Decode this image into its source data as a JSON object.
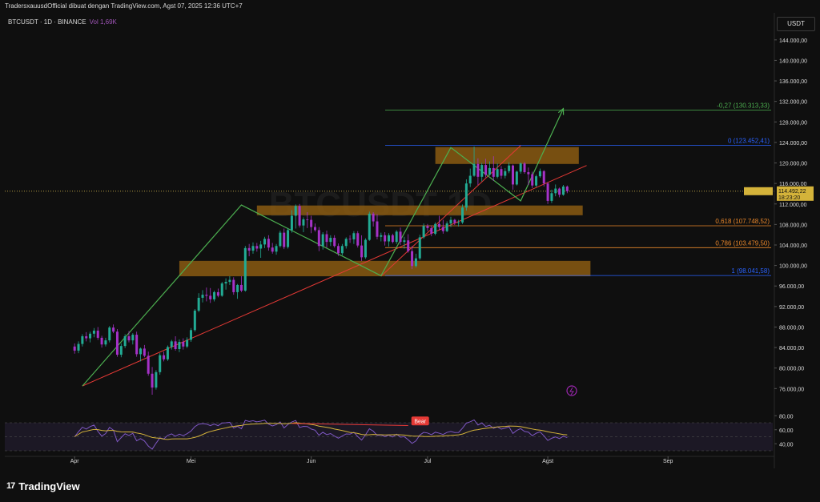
{
  "header": {
    "attribution": "TradersxauusdOfficial dibuat dengan TradingView.com, Agst 07, 2025 12:36 UTC+7",
    "symbol_line": "BTCUSDT · 1D · BINANCE",
    "volume_label": "Vol 1,69K",
    "currency_button": "USDT",
    "watermark": "BTCUSDT 1D"
  },
  "footer": {
    "brand": "TradingView",
    "logo_glyph": "17"
  },
  "chart_data": {
    "type": "candlestick",
    "price_axis_labels": [
      "144.000,00",
      "140.000,00",
      "136.000,00",
      "132.000,00",
      "128.000,00",
      "124.000,00",
      "120.000,00",
      "116.000,00",
      "112.000,00",
      "108.000,00",
      "104.000,00",
      "100.000,00",
      "96.000,00",
      "92.000,00",
      "88.000,00",
      "84.000,00",
      "80.000,00",
      "76.000,00"
    ],
    "price_axis_values": [
      144000,
      140000,
      136000,
      132000,
      128000,
      124000,
      120000,
      116000,
      112000,
      108000,
      104000,
      100000,
      96000,
      92000,
      88000,
      84000,
      80000,
      76000
    ],
    "ylim": [
      74800,
      146000
    ],
    "x_axis_labels": [
      "Apr",
      "Mei",
      "Jun",
      "Jul",
      "Agst",
      "Sep"
    ],
    "x_axis_day_index": [
      0,
      30,
      61,
      91,
      122,
      153
    ],
    "xlim_days": [
      -18,
      180
    ],
    "last_price": {
      "symbol": "BTCUSDT",
      "value": "114.492,22",
      "countdown": "18:23:20",
      "price": 114492
    },
    "candles": [
      [
        84200,
        84800,
        82800,
        83400
      ],
      [
        83400,
        85200,
        82900,
        84700
      ],
      [
        84700,
        86600,
        84200,
        86200
      ],
      [
        86200,
        87000,
        85200,
        85800
      ],
      [
        85800,
        87100,
        85000,
        86700
      ],
      [
        86700,
        87800,
        86000,
        87300
      ],
      [
        87300,
        88000,
        85500,
        85900
      ],
      [
        85900,
        86300,
        84000,
        84600
      ],
      [
        84600,
        85900,
        84200,
        85400
      ],
      [
        85400,
        88200,
        85000,
        87900
      ],
      [
        87900,
        88500,
        86800,
        87100
      ],
      [
        87100,
        87600,
        82200,
        82600
      ],
      [
        82600,
        84800,
        82100,
        84300
      ],
      [
        84300,
        86600,
        83900,
        86200
      ],
      [
        86200,
        87200,
        85000,
        85400
      ],
      [
        85400,
        86800,
        84600,
        86500
      ],
      [
        86500,
        87100,
        82200,
        82700
      ],
      [
        82700,
        84000,
        81300,
        83800
      ],
      [
        83800,
        84500,
        82100,
        82400
      ],
      [
        82400,
        83200,
        78500,
        78900
      ],
      [
        78900,
        80200,
        74800,
        76200
      ],
      [
        76200,
        79600,
        75800,
        79200
      ],
      [
        79200,
        82900,
        78700,
        82500
      ],
      [
        82500,
        83200,
        81300,
        81700
      ],
      [
        81700,
        84400,
        81400,
        84100
      ],
      [
        84100,
        85500,
        83600,
        85200
      ],
      [
        85200,
        86200,
        83400,
        83700
      ],
      [
        83700,
        85600,
        83100,
        85100
      ],
      [
        85100,
        85800,
        83600,
        84200
      ],
      [
        84200,
        86000,
        83900,
        85500
      ],
      [
        85500,
        87800,
        85100,
        87400
      ],
      [
        87400,
        91500,
        87100,
        91200
      ],
      [
        91200,
        94600,
        90900,
        93700
      ],
      [
        93700,
        95200,
        92800,
        94300
      ],
      [
        94300,
        95700,
        93000,
        94100
      ],
      [
        94100,
        95600,
        92700,
        93400
      ],
      [
        93400,
        95100,
        93000,
        94800
      ],
      [
        94800,
        95500,
        93800,
        94100
      ],
      [
        94100,
        96800,
        93900,
        96500
      ],
      [
        96500,
        97500,
        95300,
        96800
      ],
      [
        96800,
        97900,
        96200,
        97200
      ],
      [
        97200,
        97700,
        94300,
        94800
      ],
      [
        94800,
        96400,
        93500,
        96200
      ],
      [
        96200,
        97900,
        94800,
        95100
      ],
      [
        95100,
        103800,
        94900,
        103400
      ],
      [
        103400,
        104200,
        101800,
        102900
      ],
      [
        102900,
        104500,
        102300,
        103800
      ],
      [
        103800,
        104400,
        102700,
        103300
      ],
      [
        103300,
        104800,
        101500,
        104100
      ],
      [
        104100,
        105600,
        103400,
        105200
      ],
      [
        105200,
        105900,
        102900,
        103500
      ],
      [
        103500,
        104400,
        102300,
        102700
      ],
      [
        102700,
        104200,
        102100,
        103800
      ],
      [
        103800,
        106800,
        103500,
        106400
      ],
      [
        106400,
        107200,
        103200,
        103600
      ],
      [
        103600,
        107300,
        103300,
        106900
      ],
      [
        106900,
        110800,
        106400,
        109700
      ],
      [
        109700,
        111900,
        107200,
        111600
      ],
      [
        111600,
        112000,
        107400,
        107800
      ],
      [
        107800,
        109400,
        106500,
        109000
      ],
      [
        109000,
        110400,
        107300,
        108900
      ],
      [
        108900,
        109700,
        106300,
        107500
      ],
      [
        107500,
        108200,
        106600,
        106900
      ],
      [
        106900,
        107500,
        102800,
        103800
      ],
      [
        103800,
        106500,
        103100,
        106100
      ],
      [
        106100,
        106800,
        103500,
        104600
      ],
      [
        104600,
        105900,
        103800,
        105400
      ],
      [
        105400,
        105900,
        103500,
        103800
      ],
      [
        103800,
        104300,
        101900,
        102400
      ],
      [
        102400,
        104200,
        102000,
        103800
      ],
      [
        103800,
        105500,
        103300,
        105200
      ],
      [
        105200,
        105900,
        104400,
        105100
      ],
      [
        105100,
        106700,
        104200,
        106300
      ],
      [
        106300,
        106700,
        103500,
        103900
      ],
      [
        103900,
        105900,
        100900,
        101600
      ],
      [
        101600,
        105300,
        101300,
        105000
      ],
      [
        105000,
        110500,
        104800,
        110100
      ],
      [
        110100,
        110400,
        107600,
        108600
      ],
      [
        108600,
        110000,
        105100,
        105600
      ],
      [
        105600,
        106400,
        104700,
        105900
      ],
      [
        105900,
        106500,
        103900,
        104700
      ],
      [
        104700,
        106300,
        103700,
        105900
      ],
      [
        105900,
        106200,
        104300,
        104600
      ],
      [
        104600,
        106900,
        104200,
        106600
      ],
      [
        106600,
        107400,
        104000,
        104600
      ],
      [
        104600,
        105600,
        103300,
        104900
      ],
      [
        104900,
        106100,
        102500,
        102800
      ],
      [
        102800,
        103800,
        99300,
        99900
      ],
      [
        99900,
        102300,
        99600,
        101400
      ],
      [
        101400,
        106000,
        101100,
        105500
      ],
      [
        105500,
        108200,
        105200,
        107700
      ],
      [
        107700,
        108100,
        106700,
        107300
      ],
      [
        107300,
        107800,
        105700,
        106200
      ],
      [
        106200,
        108400,
        105900,
        108100
      ],
      [
        108100,
        109700,
        106800,
        107500
      ],
      [
        107500,
        108900,
        106200,
        106700
      ],
      [
        106700,
        108600,
        106500,
        108200
      ],
      [
        108200,
        109500,
        107500,
        108900
      ],
      [
        108900,
        109100,
        107900,
        108300
      ],
      [
        108300,
        108900,
        107600,
        108400
      ],
      [
        108400,
        111900,
        108100,
        111300
      ],
      [
        111300,
        116800,
        110700,
        116000
      ],
      [
        116000,
        118900,
        115300,
        117500
      ],
      [
        117500,
        123200,
        117300,
        119800
      ],
      [
        119800,
        120900,
        115700,
        117300
      ],
      [
        117300,
        120000,
        116400,
        119600
      ],
      [
        119600,
        120800,
        117200,
        117700
      ],
      [
        117700,
        120300,
        117500,
        119000
      ],
      [
        119000,
        121300,
        116500,
        117300
      ],
      [
        117300,
        119900,
        117000,
        118800
      ],
      [
        118800,
        119400,
        116900,
        117500
      ],
      [
        117500,
        119000,
        117000,
        118400
      ],
      [
        118400,
        120100,
        118000,
        119500
      ],
      [
        119500,
        119700,
        114800,
        115800
      ],
      [
        115800,
        118500,
        115600,
        118300
      ],
      [
        118300,
        120100,
        117900,
        119900
      ],
      [
        119900,
        120200,
        117900,
        118200
      ],
      [
        118200,
        119100,
        115700,
        117800
      ],
      [
        117800,
        118300,
        115100,
        115600
      ],
      [
        115600,
        117700,
        115300,
        117400
      ],
      [
        117400,
        118900,
        117100,
        118400
      ],
      [
        118400,
        118600,
        115400,
        116000
      ],
      [
        116000,
        116300,
        112000,
        112600
      ],
      [
        112600,
        114800,
        112200,
        114100
      ],
      [
        114100,
        115800,
        113500,
        115000
      ],
      [
        115000,
        115200,
        113300,
        113800
      ],
      [
        113800,
        115700,
        113600,
        115400
      ],
      [
        115400,
        115600,
        114100,
        114492
      ]
    ],
    "rsi": {
      "ylim": [
        30,
        86
      ],
      "axis_labels": [
        "80,00",
        "60,00",
        "40,00"
      ],
      "axis_values": [
        80,
        60,
        40
      ],
      "band": [
        70,
        30
      ],
      "midline": 50,
      "signal_label": "Bear"
    },
    "fibonacci": [
      {
        "label": "-0,27 (130.313,33)",
        "price": 130313,
        "color": "#4caf50"
      },
      {
        "label": "0 (123.452,41)",
        "price": 123452,
        "color": "#2962ff"
      },
      {
        "label": "0,618 (107.748,52)",
        "price": 107748,
        "color": "#e8862a"
      },
      {
        "label": "0,786 (103.479,50)",
        "price": 103479,
        "color": "#e8862a"
      },
      {
        "label": "1 (98.041,58)",
        "price": 98041,
        "color": "#2962ff"
      }
    ],
    "zones": [
      {
        "from_day": 93,
        "to_day": 130,
        "low": 119800,
        "high": 123100
      },
      {
        "from_day": 47,
        "to_day": 131,
        "low": 109800,
        "high": 111700
      },
      {
        "from_day": 27,
        "to_day": 133,
        "low": 97900,
        "high": 100900
      }
    ],
    "trend_lines": [
      {
        "x1": 2,
        "y1": 76500,
        "x2": 132,
        "y2": 119500,
        "color": "#e53935"
      },
      {
        "x1": 79,
        "y1": 97900,
        "x2": 115,
        "y2": 123400,
        "color": "#e53935"
      }
    ],
    "pattern_path": [
      [
        2,
        76500
      ],
      [
        43,
        111800
      ],
      [
        79,
        98000
      ],
      [
        97,
        123000
      ],
      [
        115,
        112600
      ],
      [
        126,
        130600
      ]
    ],
    "colors": {
      "up": "#22ab94",
      "down": "#a532c7",
      "zone": "#8a5a12",
      "pattern": "#4caf50",
      "rsi": "#7e57c2",
      "rsi_ma": "#d4b33a",
      "background": "#0f0f0f"
    }
  }
}
